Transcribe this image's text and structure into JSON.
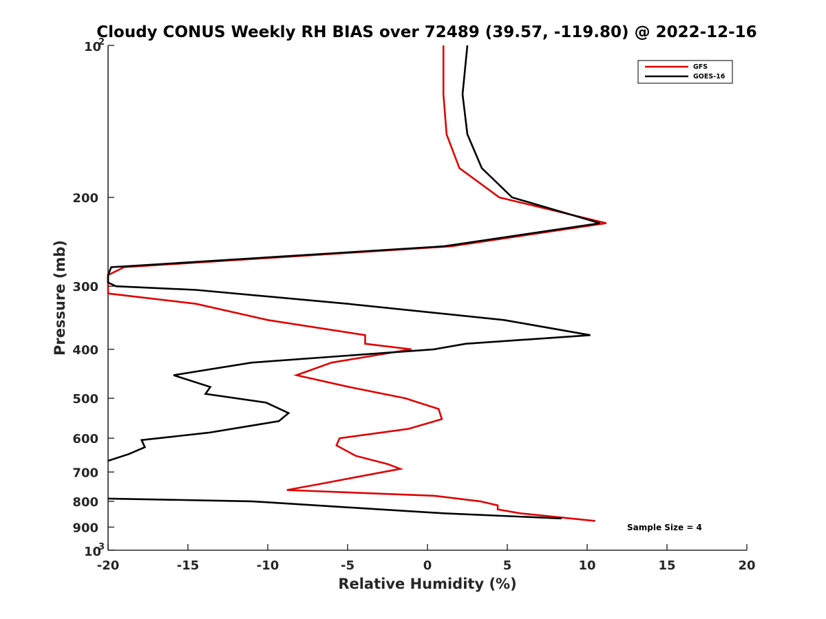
{
  "chart_data": {
    "type": "line",
    "title": "Cloudy CONUS Weekly RH BIAS over 72489 (39.57, -119.80) @ 2022-12-16",
    "xlabel": "Relative Humidity (%)",
    "ylabel": "Pressure (mb)",
    "xlim": [
      -20,
      20
    ],
    "ylim": [
      100,
      1000
    ],
    "y_scale": "log",
    "y_reversed": true,
    "xticks": [
      "-20",
      "-15",
      "-10",
      "-5",
      "0",
      "5",
      "10",
      "15",
      "20"
    ],
    "yticks": [
      {
        "value": 100,
        "base": "10",
        "exp": "2"
      },
      {
        "value": 200,
        "label": "200"
      },
      {
        "value": 300,
        "label": "300"
      },
      {
        "value": 400,
        "label": "400"
      },
      {
        "value": 500,
        "label": "500"
      },
      {
        "value": 600,
        "label": "600"
      },
      {
        "value": 700,
        "label": "700"
      },
      {
        "value": 800,
        "label": "800"
      },
      {
        "value": 900,
        "label": "900"
      },
      {
        "value": 1000,
        "base": "10",
        "exp": "3"
      }
    ],
    "grid": false,
    "legend_position": "top-right",
    "series": [
      {
        "name": "GFS",
        "color": "#e00000",
        "points": [
          [
            1.0,
            100
          ],
          [
            1.0,
            125
          ],
          [
            1.2,
            150
          ],
          [
            2.0,
            175
          ],
          [
            4.5,
            200
          ],
          [
            11.2,
            225
          ],
          [
            1.5,
            250
          ],
          [
            -19.0,
            275
          ],
          [
            -20.0,
            285
          ],
          [
            -20.0,
            310
          ],
          [
            -14.5,
            325
          ],
          [
            -10.0,
            350
          ],
          [
            -3.9,
            375
          ],
          [
            -3.9,
            390
          ],
          [
            -1.0,
            400
          ],
          [
            -6.0,
            425
          ],
          [
            -8.2,
            450
          ],
          [
            -4.9,
            475
          ],
          [
            -1.4,
            500
          ],
          [
            0.7,
            525
          ],
          [
            0.9,
            550
          ],
          [
            -1.2,
            575
          ],
          [
            -5.5,
            600
          ],
          [
            -5.7,
            620
          ],
          [
            -4.5,
            650
          ],
          [
            -2.5,
            675
          ],
          [
            -1.7,
            690
          ],
          [
            -3.8,
            710
          ],
          [
            -6.8,
            740
          ],
          [
            -8.8,
            760
          ],
          [
            0.4,
            780
          ],
          [
            3.3,
            800
          ],
          [
            4.4,
            815
          ],
          [
            4.4,
            830
          ],
          [
            5.8,
            845
          ],
          [
            10.5,
            875
          ]
        ]
      },
      {
        "name": "GOES-16",
        "color": "#000000",
        "points": [
          [
            2.5,
            100
          ],
          [
            2.2,
            125
          ],
          [
            2.5,
            150
          ],
          [
            3.4,
            175
          ],
          [
            5.3,
            200
          ],
          [
            10.8,
            225
          ],
          [
            1.0,
            250
          ],
          [
            -19.8,
            275
          ],
          [
            -20.0,
            285
          ],
          [
            -20.0,
            295
          ],
          [
            -19.5,
            300
          ],
          [
            -14.5,
            305
          ],
          [
            -5.0,
            325
          ],
          [
            4.8,
            350
          ],
          [
            10.2,
            375
          ],
          [
            2.4,
            390
          ],
          [
            0.4,
            400
          ],
          [
            -11.0,
            425
          ],
          [
            -15.9,
            450
          ],
          [
            -13.6,
            475
          ],
          [
            -13.9,
            490
          ],
          [
            -10.1,
            510
          ],
          [
            -8.7,
            535
          ],
          [
            -9.3,
            555
          ],
          [
            -13.7,
            585
          ],
          [
            -17.9,
            605
          ],
          [
            -17.7,
            625
          ],
          [
            -18.7,
            645
          ],
          [
            -20.0,
            665
          ]
        ]
      },
      {
        "name": "",
        "color": "#000000",
        "points": [
          [
            -20.0,
            790
          ],
          [
            -11.0,
            800
          ],
          [
            -3.0,
            830
          ],
          [
            1.0,
            845
          ],
          [
            8.4,
            865
          ]
        ]
      }
    ],
    "annotations": [
      "Sample Size = 4"
    ]
  }
}
